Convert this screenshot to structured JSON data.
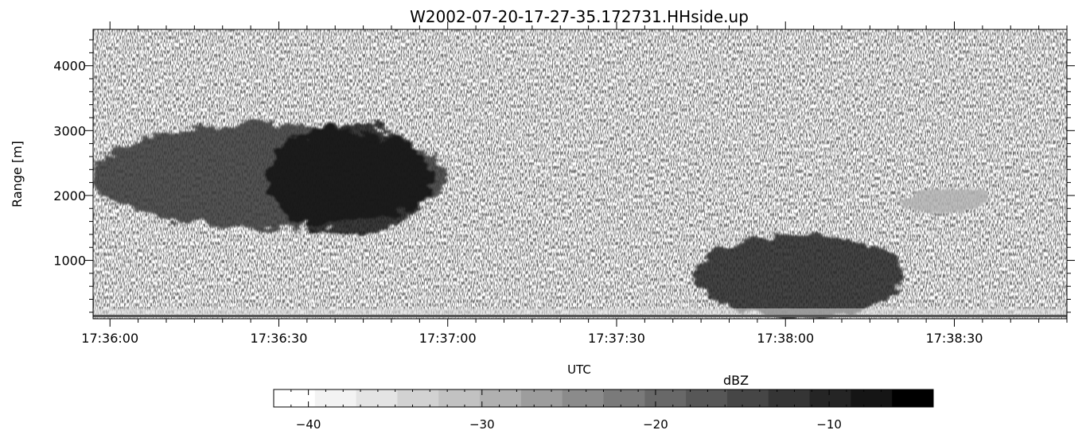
{
  "chart_data": [
    {
      "type": "heatmap",
      "title": "W2002-07-20-17-27-35.172731.HHside.up",
      "xlabel": "UTC",
      "ylabel": "Range [m]",
      "x_ticks": [
        "17:36:00",
        "17:36:30",
        "17:37:00",
        "17:37:30",
        "17:38:00",
        "17:38:30"
      ],
      "x_tick_seconds": [
        0,
        30,
        60,
        90,
        120,
        150
      ],
      "xlim_seconds": [
        -3,
        170
      ],
      "y_ticks": [
        1000,
        2000,
        3000,
        4000
      ],
      "ylim": [
        100,
        4560
      ],
      "grid": false,
      "colormap": "grayscale (white = low dBZ, black = high dBZ)",
      "features": [
        {
          "name": "upper cloud band",
          "t_start": -3,
          "t_end": 60,
          "range_bottom": 1500,
          "range_top": 3100,
          "dbz_max": -12
        },
        {
          "name": "dense echo core",
          "t_start": 28,
          "t_end": 57,
          "range_bottom": 1400,
          "range_top": 3100,
          "dbz_max": -7
        },
        {
          "name": "low cloud",
          "t_start": 104,
          "t_end": 141,
          "range_bottom": 100,
          "range_top": 1400,
          "dbz_max": -10
        },
        {
          "name": "faint cloud patch",
          "t_start": 141,
          "t_end": 156,
          "range_bottom": 1700,
          "range_top": 2100,
          "dbz_max": -30
        }
      ]
    },
    {
      "type": "colorbar",
      "label": "dBZ",
      "range": [
        -42,
        -4
      ],
      "ticks": [
        -40,
        -30,
        -20,
        -10
      ],
      "tick_labels": [
        "−40",
        "−30",
        "−20",
        "−10"
      ],
      "levels": [
        "#ffffff",
        "#f3f3f3",
        "#e4e4e4",
        "#d2d2d2",
        "#c2c2c2",
        "#b0b0b0",
        "#9d9d9d",
        "#8b8b8b",
        "#7a7a7a",
        "#686868",
        "#575757",
        "#464646",
        "#353535",
        "#252525",
        "#151515",
        "#000000"
      ]
    }
  ]
}
